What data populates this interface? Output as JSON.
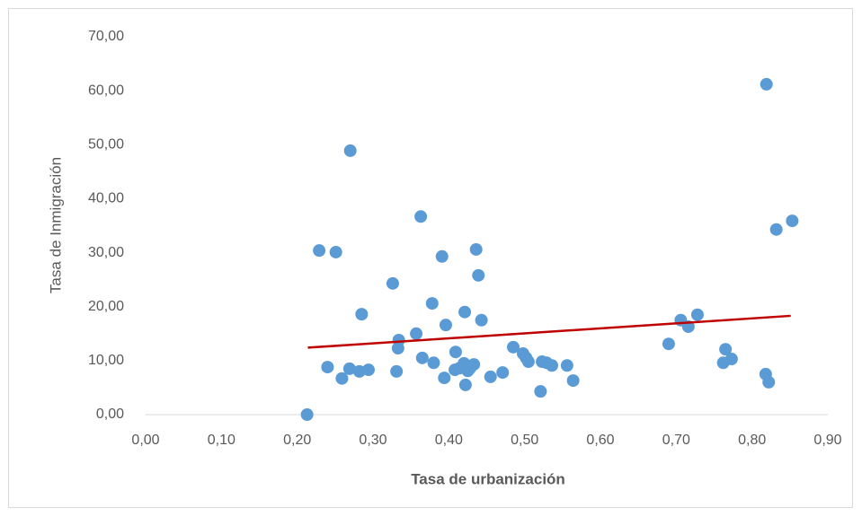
{
  "chart_data": {
    "type": "scatter",
    "xlabel": "Tasa de urbanización",
    "ylabel": "Tasa de Inmigración",
    "xlim": [
      0,
      0.9
    ],
    "ylim": [
      0,
      70
    ],
    "xticks": [
      {
        "value": 0,
        "label": "0,00"
      },
      {
        "value": 0.1,
        "label": "0,10"
      },
      {
        "value": 0.2,
        "label": "0,20"
      },
      {
        "value": 0.3,
        "label": "0,30"
      },
      {
        "value": 0.4,
        "label": "0,40"
      },
      {
        "value": 0.5,
        "label": "0,50"
      },
      {
        "value": 0.6,
        "label": "0,60"
      },
      {
        "value": 0.7,
        "label": "0,70"
      },
      {
        "value": 0.8,
        "label": "0,80"
      },
      {
        "value": 0.9,
        "label": "0,90"
      }
    ],
    "yticks": [
      {
        "value": 0,
        "label": "0,00"
      },
      {
        "value": 10,
        "label": "10,00"
      },
      {
        "value": 20,
        "label": "20,00"
      },
      {
        "value": 30,
        "label": "30,00"
      },
      {
        "value": 40,
        "label": "40,00"
      },
      {
        "value": 50,
        "label": "50,00"
      },
      {
        "value": 60,
        "label": "60,00"
      },
      {
        "value": 70,
        "label": "70,00"
      }
    ],
    "color": "#5b9bd5",
    "x": [
      0.213,
      0.229,
      0.251,
      0.27,
      0.24,
      0.259,
      0.269,
      0.282,
      0.294,
      0.285,
      0.326,
      0.333,
      0.334,
      0.331,
      0.357,
      0.363,
      0.365,
      0.378,
      0.38,
      0.391,
      0.396,
      0.394,
      0.408,
      0.409,
      0.414,
      0.42,
      0.421,
      0.425,
      0.422,
      0.428,
      0.433,
      0.436,
      0.439,
      0.443,
      0.455,
      0.471,
      0.485,
      0.498,
      0.502,
      0.505,
      0.521,
      0.523,
      0.529,
      0.536,
      0.556,
      0.564,
      0.69,
      0.706,
      0.716,
      0.728,
      0.765,
      0.762,
      0.773,
      0.819,
      0.818,
      0.822,
      0.832,
      0.853
    ],
    "y": [
      0,
      30.4,
      30.1,
      48.9,
      8.8,
      6.7,
      8.5,
      8.0,
      8.3,
      18.6,
      24.3,
      12.3,
      13.8,
      8.0,
      15.0,
      36.7,
      10.5,
      20.6,
      9.6,
      29.3,
      16.6,
      6.8,
      8.3,
      11.6,
      8.6,
      9.5,
      19.0,
      8.1,
      5.5,
      8.6,
      9.3,
      30.6,
      25.8,
      17.5,
      7.0,
      7.8,
      12.5,
      11.3,
      10.5,
      9.8,
      4.3,
      9.8,
      9.6,
      9.1,
      9.1,
      6.3,
      13.1,
      17.5,
      16.3,
      18.5,
      12.1,
      9.6,
      10.3,
      61.2,
      7.5,
      6.0,
      34.3,
      35.9
    ],
    "trendline": {
      "x": [
        0.214,
        0.851
      ],
      "y": [
        12.4,
        18.3
      ],
      "color": "#c00000"
    }
  }
}
